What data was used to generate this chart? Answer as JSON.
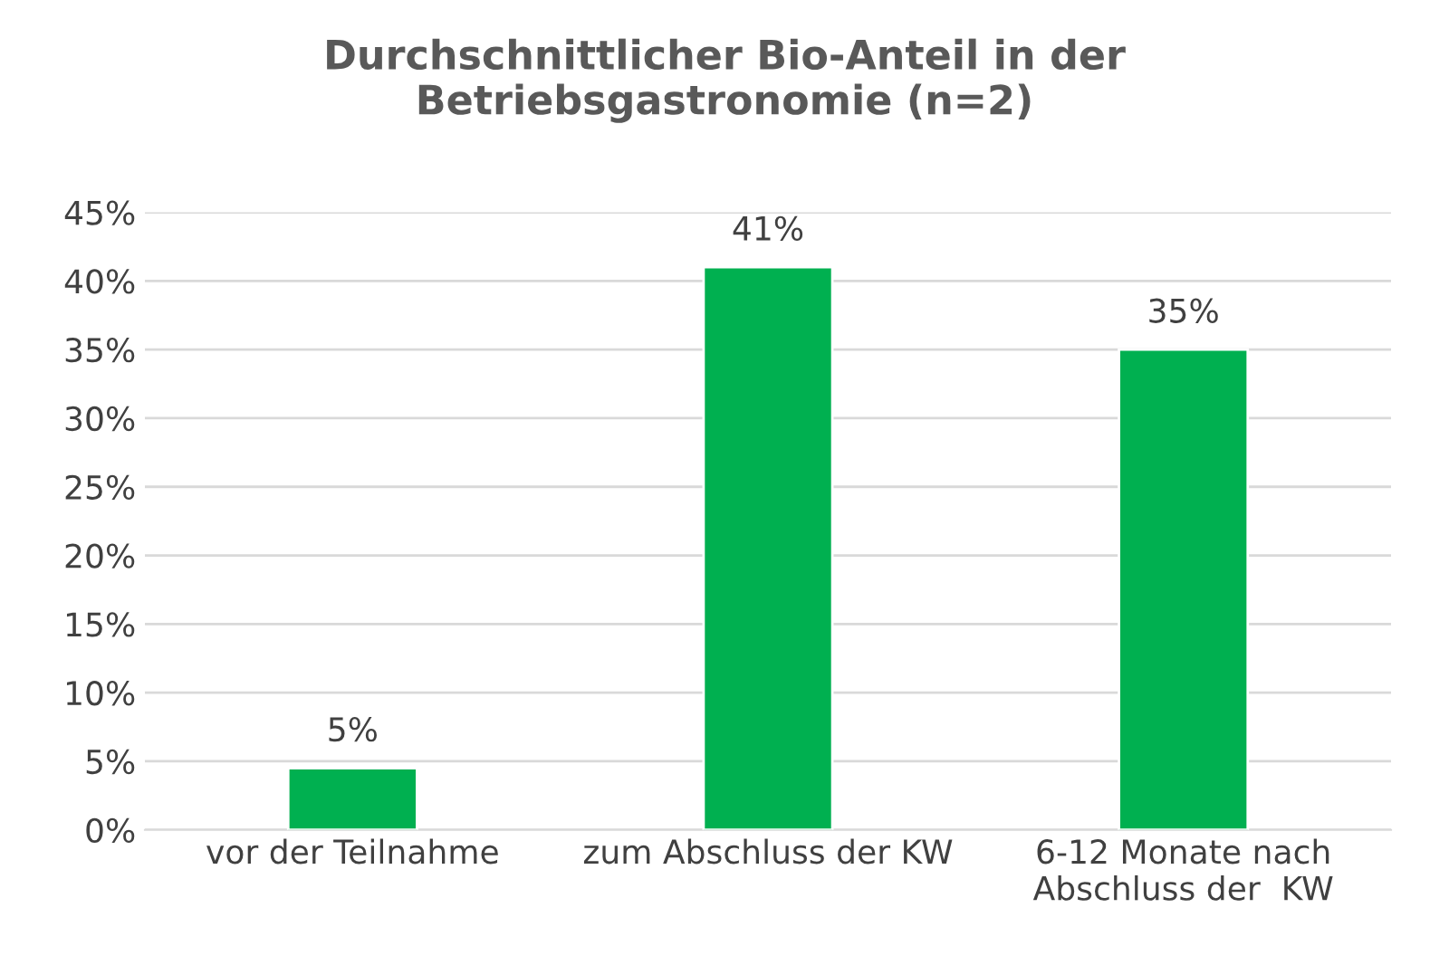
{
  "chart_data": {
    "type": "bar",
    "title": "Durchschnittlicher Bio-Anteil in der\nBetriebsgastronomie (n=2)",
    "categories": [
      "vor der Teilnahme",
      "zum Abschluss der KW",
      "6-12 Monate nach\nAbschluss der  KW"
    ],
    "values": [
      4.5,
      41,
      35
    ],
    "value_labels": [
      "5%",
      "41%",
      "35%"
    ],
    "color": "#00b050",
    "ylim": [
      0,
      45
    ],
    "yticks": [
      {
        "value": 0,
        "label": "0%"
      },
      {
        "value": 5,
        "label": "5%"
      },
      {
        "value": 10,
        "label": "10%"
      },
      {
        "value": 15,
        "label": "15%"
      },
      {
        "value": 20,
        "label": "20%"
      },
      {
        "value": 25,
        "label": "25%"
      },
      {
        "value": 30,
        "label": "30%"
      },
      {
        "value": 35,
        "label": "35%"
      },
      {
        "value": 40,
        "label": "40%"
      },
      {
        "value": 45,
        "label": "45%"
      }
    ],
    "grid": "y",
    "legend": false
  }
}
